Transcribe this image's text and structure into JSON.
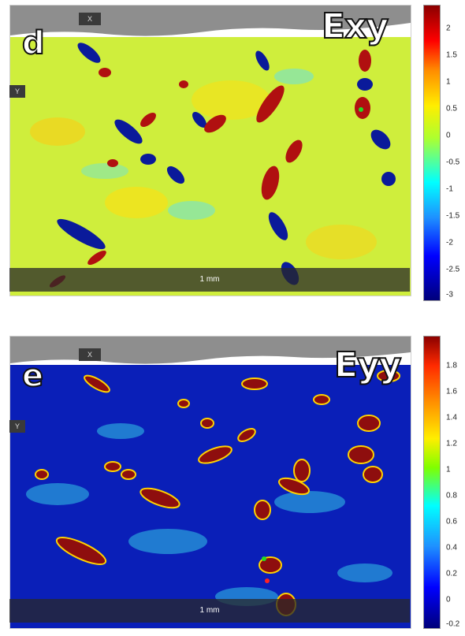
{
  "panels": [
    {
      "letter": "d",
      "field": "Exy",
      "x_axis": "X",
      "y_axis": "Y",
      "scale_bar": "1 mm",
      "colorbar_ticks": [
        "2",
        "1.5",
        "1",
        "0.5",
        "0",
        "-0.5",
        "-1",
        "-1.5",
        "-2",
        "-2.5",
        "-3"
      ]
    },
    {
      "letter": "e",
      "field": "Eyy",
      "x_axis": "X",
      "y_axis": "Y",
      "scale_bar": "1 mm",
      "colorbar_ticks": [
        "1.8",
        "1.6",
        "1.4",
        "1.2",
        "1",
        "0.8",
        "0.6",
        "0.4",
        "0.2",
        "0",
        "-0.2"
      ]
    }
  ],
  "colors": {
    "exy_background": "#d8f03a",
    "eyy_background": "#0a1fb8",
    "positive_band": "#b01010",
    "negative_band": "#0a1a9a"
  }
}
